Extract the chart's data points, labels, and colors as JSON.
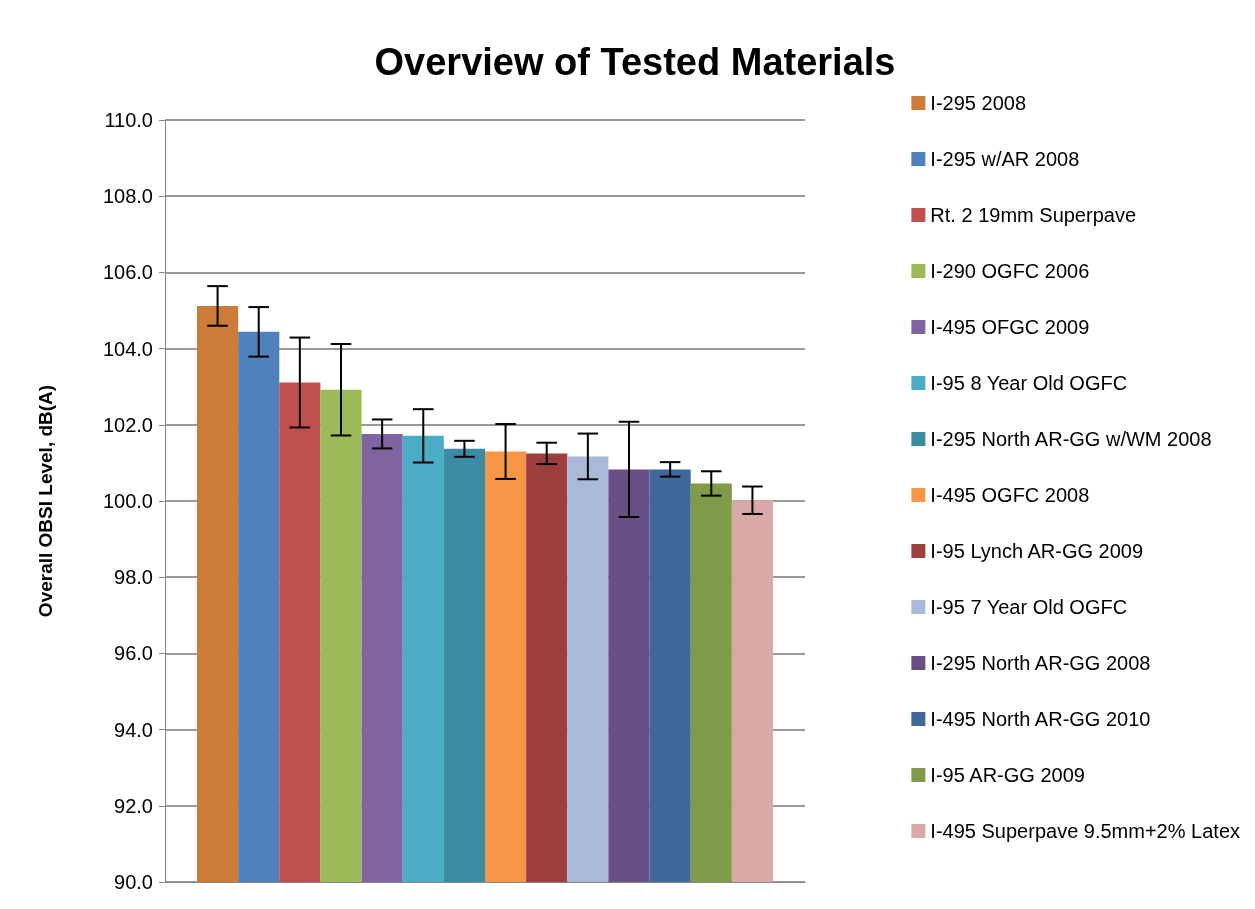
{
  "chart_data": {
    "type": "bar",
    "title": "Overview of Tested Materials",
    "ylabel": "Overall OBSI Level, dB(A)",
    "categories": [
      null
    ],
    "ylim": [
      90,
      110
    ],
    "yticks": [
      {
        "value": 90,
        "label": "90.0"
      },
      {
        "value": 92,
        "label": "92.0"
      },
      {
        "value": 94,
        "label": "94.0"
      },
      {
        "value": 96,
        "label": "96.0"
      },
      {
        "value": 98,
        "label": "98.0"
      },
      {
        "value": 100,
        "label": "100.0"
      },
      {
        "value": 102,
        "label": "102.0"
      },
      {
        "value": 104,
        "label": "104.0"
      },
      {
        "value": 106,
        "label": "106.0"
      },
      {
        "value": 108,
        "label": "108.0"
      },
      {
        "value": 110,
        "label": "110.0"
      }
    ],
    "grid": "y",
    "legend": "right",
    "series": [
      {
        "name": "I-295 2008",
        "color": "#cc7b38",
        "values": [
          105.12
        ],
        "errors": [
          0.52
        ]
      },
      {
        "name": "I-295 w/AR 2008",
        "color": "#4f81bd",
        "values": [
          104.44
        ],
        "errors": [
          0.65
        ]
      },
      {
        "name": "Rt. 2 19mm Superpave",
        "color": "#c0504d",
        "values": [
          103.11
        ],
        "errors": [
          1.18
        ]
      },
      {
        "name": "I-290 OGFC 2006",
        "color": "#9bbb59",
        "values": [
          102.92
        ],
        "errors": [
          1.2
        ]
      },
      {
        "name": "I-495 OFGC 2009",
        "color": "#8064a2",
        "values": [
          101.76
        ],
        "errors": [
          0.38
        ]
      },
      {
        "name": "I-95 8 Year Old OGFC",
        "color": "#4bacc6",
        "values": [
          101.71
        ],
        "errors": [
          0.7
        ]
      },
      {
        "name": "I-295 North AR-GG w/WM 2008",
        "color": "#3b8ba3",
        "values": [
          101.37
        ],
        "errors": [
          0.21
        ]
      },
      {
        "name": "I-495 OGFC 2008",
        "color": "#f79646",
        "values": [
          101.3
        ],
        "errors": [
          0.72
        ]
      },
      {
        "name": "I-95 Lynch AR-GG 2009",
        "color": "#9e3f3d",
        "values": [
          101.25
        ],
        "errors": [
          0.28
        ]
      },
      {
        "name": "I-95 7 Year Old OGFC",
        "color": "#aab9d7",
        "values": [
          101.17
        ],
        "errors": [
          0.6
        ]
      },
      {
        "name": "I-295 North AR-GG 2008",
        "color": "#684f86",
        "values": [
          100.83
        ],
        "errors": [
          1.25
        ]
      },
      {
        "name": "I-495 North AR-GG 2010",
        "color": "#3e6899",
        "values": [
          100.83
        ],
        "errors": [
          0.19
        ]
      },
      {
        "name": "I-95 AR-GG 2009",
        "color": "#7f9a48",
        "values": [
          100.46
        ],
        "errors": [
          0.32
        ]
      },
      {
        "name": "I-495 Superpave 9.5mm+2% Latex",
        "color": "#d9a9a8",
        "values": [
          100.02
        ],
        "errors": [
          0.36
        ]
      }
    ]
  }
}
